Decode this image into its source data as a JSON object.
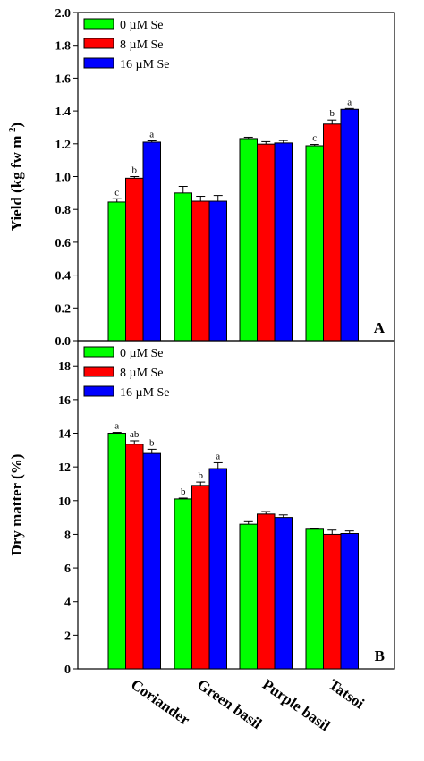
{
  "chart_data": [
    {
      "type": "bar",
      "panel_label": "A",
      "ylabel": "Yield (kg fw m",
      "ylabel_sup": "-2",
      "ylabel_close": ")",
      "ylim": [
        0,
        2.0
      ],
      "yticks": [
        "0.0",
        "0.2",
        "0.4",
        "0.6",
        "0.8",
        "1.0",
        "1.2",
        "1.4",
        "1.6",
        "1.8",
        "2.0"
      ],
      "ytick_values": [
        0,
        0.2,
        0.4,
        0.6,
        0.8,
        1.0,
        1.2,
        1.4,
        1.6,
        1.8,
        2.0
      ],
      "categories": [
        "Coriander",
        "Green basil",
        "Purple basil",
        "Tatsoi"
      ],
      "legend_position": "top-left",
      "series": [
        {
          "name": "0 µM Se",
          "color": "#00ff00",
          "values": [
            0.845,
            0.9,
            1.232,
            1.188
          ],
          "errors": [
            0.02,
            0.04,
            0.008,
            0.008
          ],
          "labels": [
            "c",
            "",
            "",
            "c"
          ]
        },
        {
          "name": "8 µM Se",
          "color": "#ff0000",
          "values": [
            0.99,
            0.85,
            1.198,
            1.32
          ],
          "errors": [
            0.01,
            0.03,
            0.015,
            0.025
          ],
          "labels": [
            "b",
            "",
            "",
            "b"
          ]
        },
        {
          "name": "16 µM Se",
          "color": "#0000ff",
          "values": [
            1.21,
            0.85,
            1.205,
            1.41
          ],
          "errors": [
            0.008,
            0.035,
            0.015,
            0.005
          ],
          "labels": [
            "a",
            "",
            "",
            "a"
          ]
        }
      ]
    },
    {
      "type": "bar",
      "panel_label": "B",
      "ylabel": "Dry matter (%)",
      "ylim": [
        0,
        19.5
      ],
      "yticks": [
        "0",
        "2",
        "4",
        "6",
        "8",
        "10",
        "12",
        "14",
        "16",
        "18"
      ],
      "ytick_values": [
        0,
        2,
        4,
        6,
        8,
        10,
        12,
        14,
        16,
        18
      ],
      "categories": [
        "Coriander",
        "Green basil",
        "Purple basil",
        "Tatsoi"
      ],
      "legend_position": "top-left",
      "series": [
        {
          "name": "0 µM Se",
          "color": "#00ff00",
          "values": [
            14.0,
            10.1,
            8.6,
            8.3
          ],
          "errors": [
            0.05,
            0.05,
            0.15,
            0.03
          ],
          "labels": [
            "a",
            "b",
            "",
            ""
          ]
        },
        {
          "name": "8 µM Se",
          "color": "#ff0000",
          "values": [
            13.35,
            10.9,
            9.2,
            8.0
          ],
          "errors": [
            0.2,
            0.2,
            0.15,
            0.25
          ],
          "labels": [
            "ab",
            "b",
            "",
            ""
          ]
        },
        {
          "name": "16 µM Se",
          "color": "#0000ff",
          "values": [
            12.8,
            11.9,
            9.0,
            8.05
          ],
          "errors": [
            0.25,
            0.35,
            0.15,
            0.15
          ],
          "labels": [
            "b",
            "a",
            "",
            ""
          ]
        }
      ]
    }
  ]
}
